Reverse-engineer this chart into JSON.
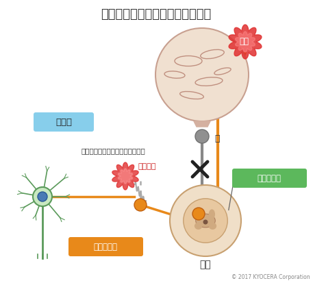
{
  "title": "神経障害性疼痛発生の複雑な機序",
  "title_fontsize": 13,
  "bg_color": "#ffffff",
  "orange": "#E8891A",
  "gray": "#7a7a7a",
  "light_gray": "#bbbbbb",
  "brain_fill": "#f0e0d0",
  "brain_outline": "#c8a090",
  "spinal_fill": "#f0dfc8",
  "spinal_outline": "#c8a070",
  "green_box": "#5cb85c",
  "blue_box": "#87ceeb",
  "pain_red": "#e03030",
  "neuron_green": "#5a9a5a",
  "neuron_blue": "#4a7ab5",
  "copyright": "© 2017 KYOCERA Corporation",
  "label_brain": "脳",
  "label_pain": "痛み",
  "label_disinhibition": "脱抑制",
  "label_descending": "（下行性疼痛抑制系の機能低下）",
  "label_nerve_damage": "神経損傷",
  "label_peripheral": "末梢性感作",
  "label_central": "中枢性感作",
  "label_spinal2": "脊髄"
}
